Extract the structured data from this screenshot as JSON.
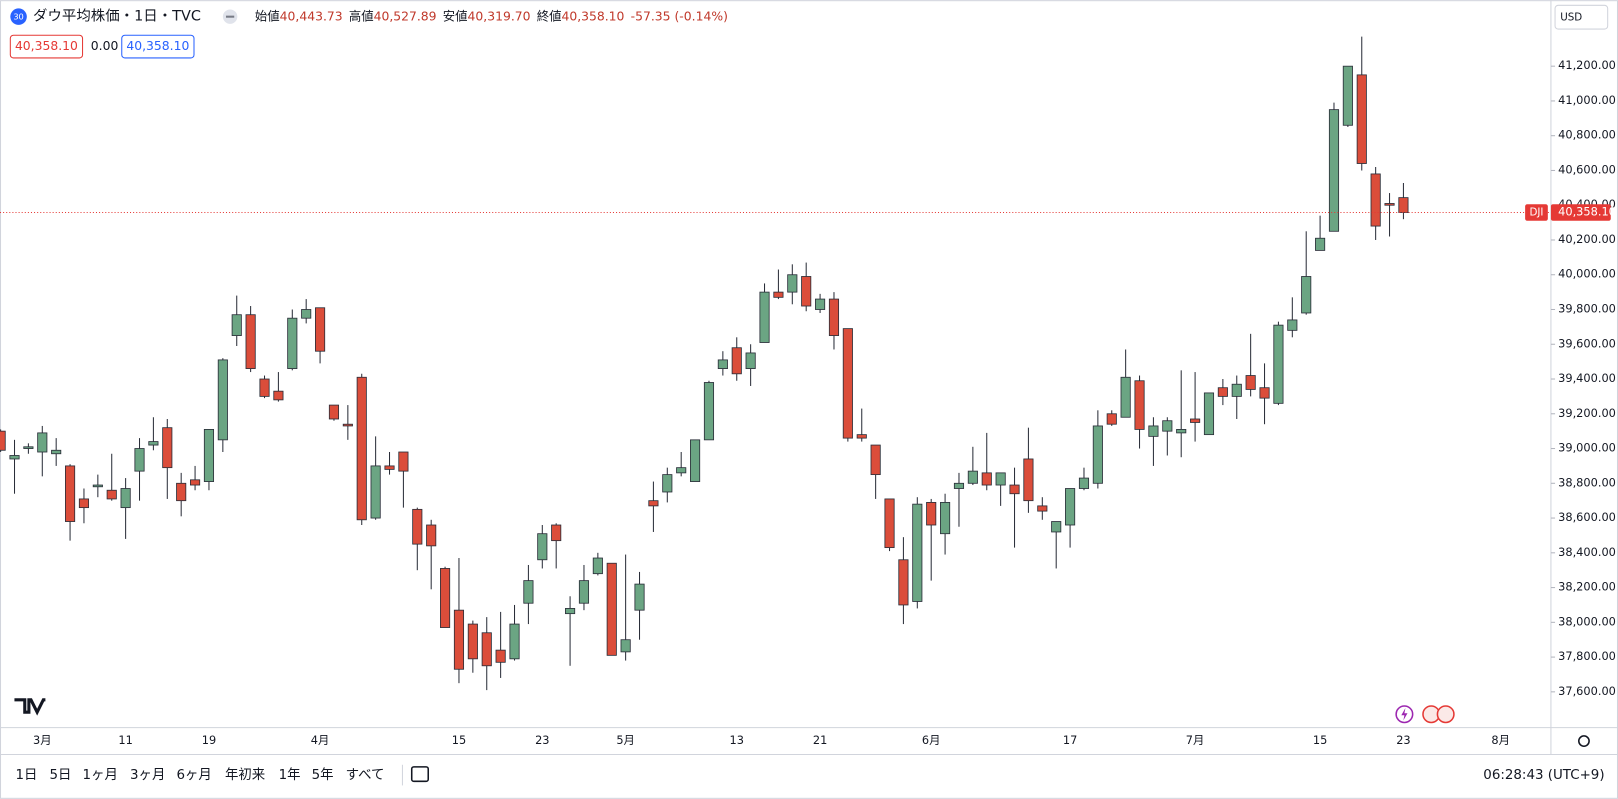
{
  "header": {
    "badge": "30",
    "ohlc": [
      {
        "label": "始値",
        "value": "40,443.73"
      },
      {
        "label": "高値",
        "value": "40,527.89"
      },
      {
        "label": "安値",
        "value": "40,319.70"
      },
      {
        "label": "終値",
        "value": "40,358.10"
      }
    ],
    "change": "-57.35 (-0.14%)",
    "inputs": [
      "40,358.10",
      "0.00",
      "40,358.10"
    ],
    "currency": "USD"
  },
  "toolbar": {
    "ranges": [
      "1日",
      "5日",
      "1ヶ月",
      "3ヶ月",
      "6ヶ月",
      "年初来",
      "1年",
      "5年",
      "すべて"
    ],
    "clock": "06:28:43 (UTC+9)"
  },
  "chart_data": {
    "type": "candlestick",
    "title": "ダウ平均株価・1日・TVC",
    "categories": [
      null,
      null,
      null,
      "3月",
      null,
      null,
      null,
      null,
      null,
      "11",
      null,
      null,
      null,
      null,
      null,
      "19",
      null,
      null,
      null,
      null,
      null,
      null,
      null,
      "4月",
      null,
      null,
      null,
      null,
      null,
      null,
      null,
      null,
      null,
      "15",
      null,
      null,
      null,
      null,
      null,
      "23",
      null,
      null,
      null,
      null,
      null,
      "5月",
      null,
      null,
      null,
      null,
      null,
      null,
      null,
      "13",
      null,
      null,
      null,
      null,
      null,
      "21",
      null,
      null,
      null,
      null,
      null,
      null,
      null,
      "6月",
      null,
      null,
      null,
      null,
      null,
      null,
      null,
      null,
      null,
      "17",
      null,
      null,
      null,
      null,
      null,
      null,
      null,
      null,
      "7月",
      null,
      null,
      null,
      null,
      null,
      null,
      null,
      null,
      "15",
      null,
      null,
      null,
      null,
      null,
      "23",
      null,
      null,
      null,
      null,
      null,
      null,
      "8月"
    ],
    "open": [
      39100,
      38940,
      39000,
      38980,
      38970,
      38900,
      38710,
      38780,
      38760,
      38660,
      38870,
      39020,
      39120,
      38800,
      38820,
      38810,
      39050,
      39650,
      39770,
      39400,
      39330,
      39460,
      39750,
      39810,
      39250,
      39140,
      39410,
      38600,
      38900,
      38980,
      38650,
      38560,
      38310,
      38070,
      37990,
      37940,
      37840,
      37790,
      38110,
      38360,
      38560,
      38050,
      38110,
      38280,
      38340,
      37830,
      38070,
      38700,
      38750,
      38860,
      38810,
      39050,
      39460,
      39580,
      39460,
      39610,
      39900,
      39900,
      39990,
      39800,
      39860,
      39690,
      39080,
      39020,
      38710,
      38360,
      38120,
      38690,
      38510,
      38770,
      38800,
      38860,
      38790,
      38790,
      38940,
      38670,
      38520,
      38560,
      38770,
      38800,
      39200,
      39180,
      39390,
      39070,
      39100,
      39090,
      39170,
      39080,
      39350,
      39300,
      39420,
      39350,
      39260,
      39680,
      39780,
      40140,
      40250,
      40860,
      41150,
      40580,
      40410,
      40443.73,
      null,
      null,
      null,
      null,
      null,
      null,
      null
    ],
    "high": [
      39110,
      39050,
      39030,
      39130,
      39060,
      38910,
      38770,
      38850,
      38970,
      38830,
      39060,
      39180,
      39170,
      38860,
      38900,
      39110,
      39520,
      39880,
      39820,
      39420,
      39440,
      39800,
      39860,
      39810,
      39250,
      39250,
      39430,
      39070,
      38980,
      38980,
      38660,
      38590,
      38320,
      38370,
      38010,
      38030,
      38060,
      38100,
      38330,
      38560,
      38570,
      38150,
      38330,
      38400,
      38340,
      38390,
      38290,
      38810,
      38890,
      38980,
      39050,
      39390,
      39560,
      39640,
      39600,
      39950,
      40030,
      40060,
      40070,
      39890,
      39900,
      39690,
      39230,
      39020,
      38710,
      38490,
      38720,
      38710,
      38740,
      38860,
      39010,
      39090,
      38860,
      38890,
      39120,
      38720,
      38580,
      38770,
      38890,
      39220,
      39220,
      39570,
      39420,
      39180,
      39180,
      39450,
      39440,
      39320,
      39400,
      39420,
      39660,
      39490,
      39730,
      39870,
      40250,
      40340,
      40990,
      41200,
      41370,
      40620,
      40470,
      40527.89,
      null,
      null,
      null,
      null,
      null,
      null,
      null
    ],
    "low": [
      38980,
      38740,
      38970,
      38840,
      38900,
      38470,
      38570,
      38720,
      38700,
      38480,
      38700,
      38990,
      38710,
      38610,
      38760,
      38760,
      38980,
      39590,
      39440,
      39290,
      39270,
      39450,
      39720,
      39490,
      39160,
      39050,
      38560,
      38590,
      38850,
      38660,
      38300,
      38190,
      37970,
      37650,
      37710,
      37610,
      37680,
      37780,
      37990,
      38310,
      38310,
      37750,
      38070,
      38270,
      37810,
      37780,
      37900,
      38520,
      38690,
      38840,
      38810,
      39050,
      39420,
      39390,
      39360,
      39610,
      39860,
      39830,
      39790,
      39780,
      39570,
      39040,
      39040,
      38710,
      38410,
      37990,
      38080,
      38240,
      38390,
      38550,
      38790,
      38760,
      38670,
      38430,
      38630,
      38590,
      38310,
      38430,
      38760,
      38770,
      39130,
      39180,
      39000,
      38900,
      38960,
      38950,
      39040,
      39080,
      39250,
      39170,
      39300,
      39140,
      39250,
      39640,
      39770,
      40140,
      40250,
      40850,
      40600,
      40200,
      40220,
      40319.7,
      null,
      null,
      null,
      null,
      null,
      null,
      null
    ],
    "close": [
      38990,
      38960,
      39010,
      39090,
      38990,
      38580,
      38660,
      38790,
      38710,
      38770,
      39000,
      39040,
      38890,
      38700,
      38790,
      39110,
      39510,
      39770,
      39460,
      39300,
      39280,
      39750,
      39800,
      39560,
      39170,
      39130,
      38590,
      38900,
      38880,
      38870,
      38450,
      38440,
      37970,
      37730,
      37790,
      37750,
      37770,
      37990,
      38240,
      38510,
      38470,
      38080,
      38240,
      38370,
      37810,
      37900,
      38220,
      38670,
      38850,
      38890,
      39050,
      39380,
      39510,
      39430,
      39550,
      39900,
      39870,
      40000,
      39820,
      39860,
      39650,
      39060,
      39060,
      38850,
      38430,
      38100,
      38680,
      38560,
      38690,
      38800,
      38870,
      38790,
      38860,
      38740,
      38700,
      38640,
      38580,
      38770,
      38830,
      39130,
      39140,
      39410,
      39110,
      39130,
      39160,
      39110,
      39150,
      39320,
      39300,
      39370,
      39340,
      39290,
      39710,
      39740,
      39990,
      40210,
      40950,
      41200,
      40640,
      40280,
      40400,
      40358.1,
      null,
      null,
      null,
      null,
      null,
      null,
      null
    ],
    "up_color": "#6ba583",
    "down_color": "#db4d3a",
    "ylim": [
      37400,
      41400
    ],
    "yticks": [
      {
        "value": 37600,
        "label": "37,600.00"
      },
      {
        "value": 37800,
        "label": "37,800.00"
      },
      {
        "value": 38000,
        "label": "38,000.00"
      },
      {
        "value": 38200,
        "label": "38,200.00"
      },
      {
        "value": 38400,
        "label": "38,400.00"
      },
      {
        "value": 38600,
        "label": "38,600.00"
      },
      {
        "value": 38800,
        "label": "38,800.00"
      },
      {
        "value": 39000,
        "label": "39,000.00"
      },
      {
        "value": 39200,
        "label": "39,200.00"
      },
      {
        "value": 39400,
        "label": "39,400.00"
      },
      {
        "value": 39600,
        "label": "39,600.00"
      },
      {
        "value": 39800,
        "label": "39,800.00"
      },
      {
        "value": 40000,
        "label": "40,000.00"
      },
      {
        "value": 40200,
        "label": "40,200.00"
      },
      {
        "value": 40400,
        "label": "40,400.00"
      },
      {
        "value": 40600,
        "label": "40,600.00"
      },
      {
        "value": 40800,
        "label": "40,800.00"
      },
      {
        "value": 41000,
        "label": "41,000.00"
      },
      {
        "value": 41200,
        "label": "41,200.00"
      }
    ],
    "grid": false,
    "price_line": {
      "symbol": "DJI",
      "value": 40358.1,
      "label": "40,358.10",
      "color": "#e53935"
    }
  }
}
